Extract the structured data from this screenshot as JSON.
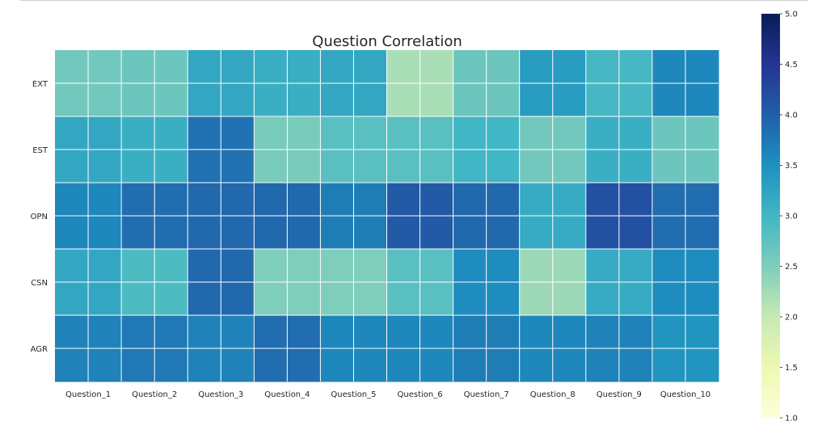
{
  "chart_data": {
    "type": "heatmap",
    "title": "Question Correlation",
    "xlabel": "",
    "ylabel": "",
    "x_categories": [
      "Question_1",
      "Question_2",
      "Question_3",
      "Question_4",
      "Question_5",
      "Question_6",
      "Question_7",
      "Question_8",
      "Question_9",
      "Question_10"
    ],
    "y_categories": [
      "EXT",
      "EST",
      "OPN",
      "CSN",
      "AGR"
    ],
    "values": [
      [
        2.6,
        2.65,
        3.2,
        3.1,
        3.2,
        2.2,
        2.65,
        3.35,
        2.95,
        3.6
      ],
      [
        3.2,
        3.1,
        3.8,
        2.55,
        2.8,
        2.8,
        3.0,
        2.6,
        3.1,
        2.65
      ],
      [
        3.6,
        3.85,
        3.9,
        3.9,
        3.7,
        4.05,
        3.9,
        3.15,
        4.15,
        3.85
      ],
      [
        3.2,
        2.9,
        3.9,
        2.5,
        2.5,
        2.8,
        3.55,
        2.3,
        3.15,
        3.55
      ],
      [
        3.65,
        3.75,
        3.65,
        3.85,
        3.6,
        3.6,
        3.7,
        3.6,
        3.65,
        3.45
      ]
    ],
    "colorbar": {
      "min": 1.0,
      "max": 5.0,
      "ticks": [
        "1.0",
        "1.5",
        "2.0",
        "2.5",
        "3.0",
        "3.5",
        "4.0",
        "4.5",
        "5.0"
      ],
      "colormap": "YlGnBu"
    },
    "grid": true
  }
}
